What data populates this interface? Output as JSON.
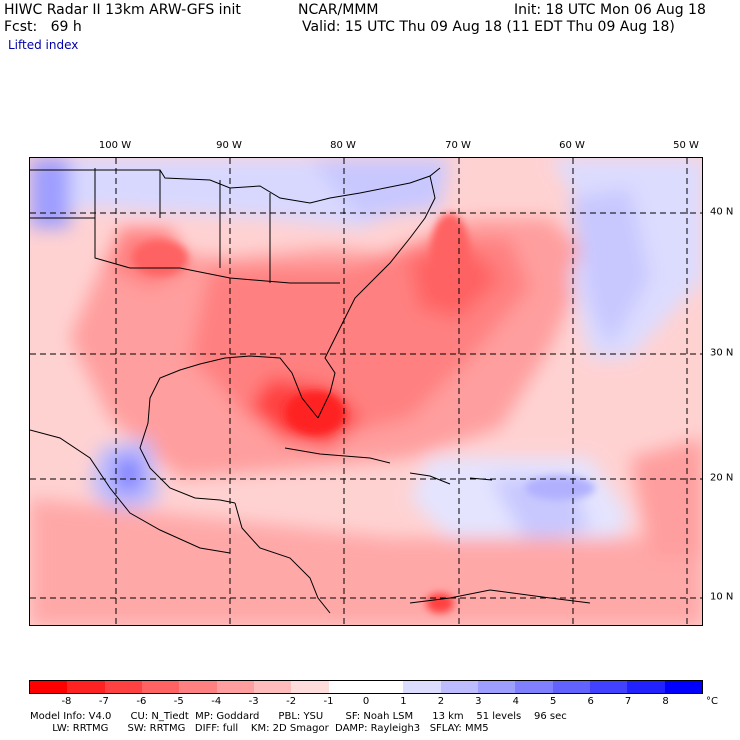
{
  "header": {
    "title": "HIWC Radar II 13km ARW-GFS init",
    "org": "NCAR/MMM",
    "init": "Init: 18 UTC Mon 06 Aug 18",
    "fcst": "Fcst:   69 h",
    "valid": "Valid: 15 UTC Thu 09 Aug 18 (11 EDT Thu 09 Aug 18)",
    "field": "Lifted index"
  },
  "map": {
    "lon_labels": [
      "100 W",
      "90 W",
      "80 W",
      "70 W",
      "60 W",
      "50 W"
    ],
    "lat_labels": [
      "40 N",
      "30 N",
      "20 N",
      "10 N"
    ]
  },
  "colorbar": {
    "ticks": [
      "-8",
      "-7",
      "-6",
      "-5",
      "-4",
      "-3",
      "-2",
      "-1",
      "0",
      "1",
      "2",
      "3",
      "4",
      "5",
      "6",
      "7",
      "8"
    ],
    "unit": "°C",
    "colors": [
      "#ff0000",
      "#ff2222",
      "#ff4141",
      "#ff6262",
      "#ff8080",
      "#ff9e9e",
      "#ffbcbc",
      "#ffdcdc",
      "#ffffff",
      "#ffffff",
      "#dcdcff",
      "#bcbcff",
      "#9e9eff",
      "#8080ff",
      "#6262ff",
      "#4141ff",
      "#2222ff",
      "#0000ff"
    ]
  },
  "footer": {
    "line1": "Model Info: V4.0      CU: N_Tiedt  MP: Goddard      PBL: YSU       SF: Noah LSM      13 km    51 levels    96 sec",
    "line2": "       LW: RRTMG      SW: RRTMG   DIFF: full    KM: 2D Smagor  DAMP: Rayleigh3   SFLAY: MM5"
  }
}
